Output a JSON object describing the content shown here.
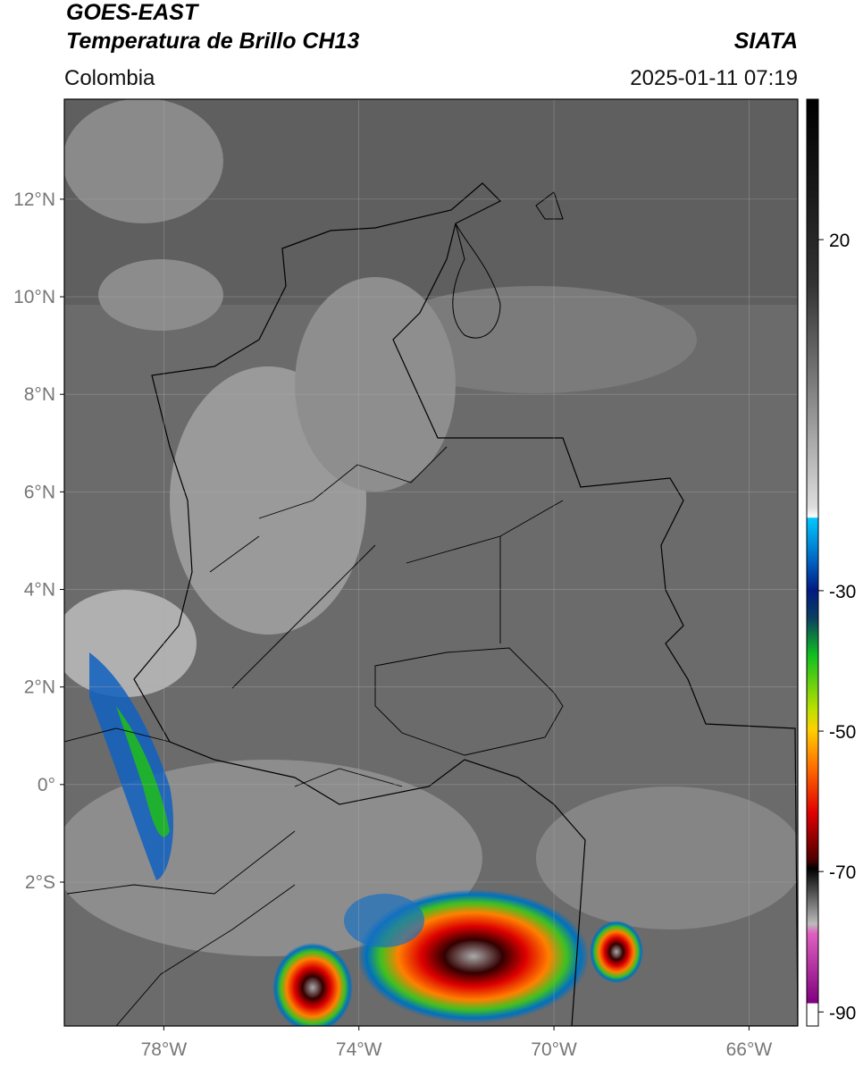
{
  "header": {
    "title": "GOES-EAST",
    "subtitle": "Temperatura de Brillo CH13",
    "agency": "SIATA",
    "region": "Colombia",
    "timestamp": "2025-01-11 07:19"
  },
  "map": {
    "lat_range": [
      -4.95,
      14.05
    ],
    "lon_range": [
      -80.04,
      -65
    ],
    "lat_ticks": [
      {
        "value": 12,
        "label": "12°N"
      },
      {
        "value": 10,
        "label": "10°N"
      },
      {
        "value": 8,
        "label": "8°N"
      },
      {
        "value": 6,
        "label": "6°N"
      },
      {
        "value": 4,
        "label": "4°N"
      },
      {
        "value": 2,
        "label": "2°N"
      },
      {
        "value": 0,
        "label": "0°"
      },
      {
        "value": -2,
        "label": "2°S"
      }
    ],
    "lon_ticks": [
      {
        "value": -78,
        "label": "78°W"
      },
      {
        "value": -74,
        "label": "74°W"
      },
      {
        "value": -70,
        "label": "70°W"
      },
      {
        "value": -66,
        "label": "66°W"
      }
    ]
  },
  "colorbar": {
    "range": [
      40,
      -92
    ],
    "ticks": [
      20,
      -30,
      -50,
      -70,
      -90
    ]
  }
}
